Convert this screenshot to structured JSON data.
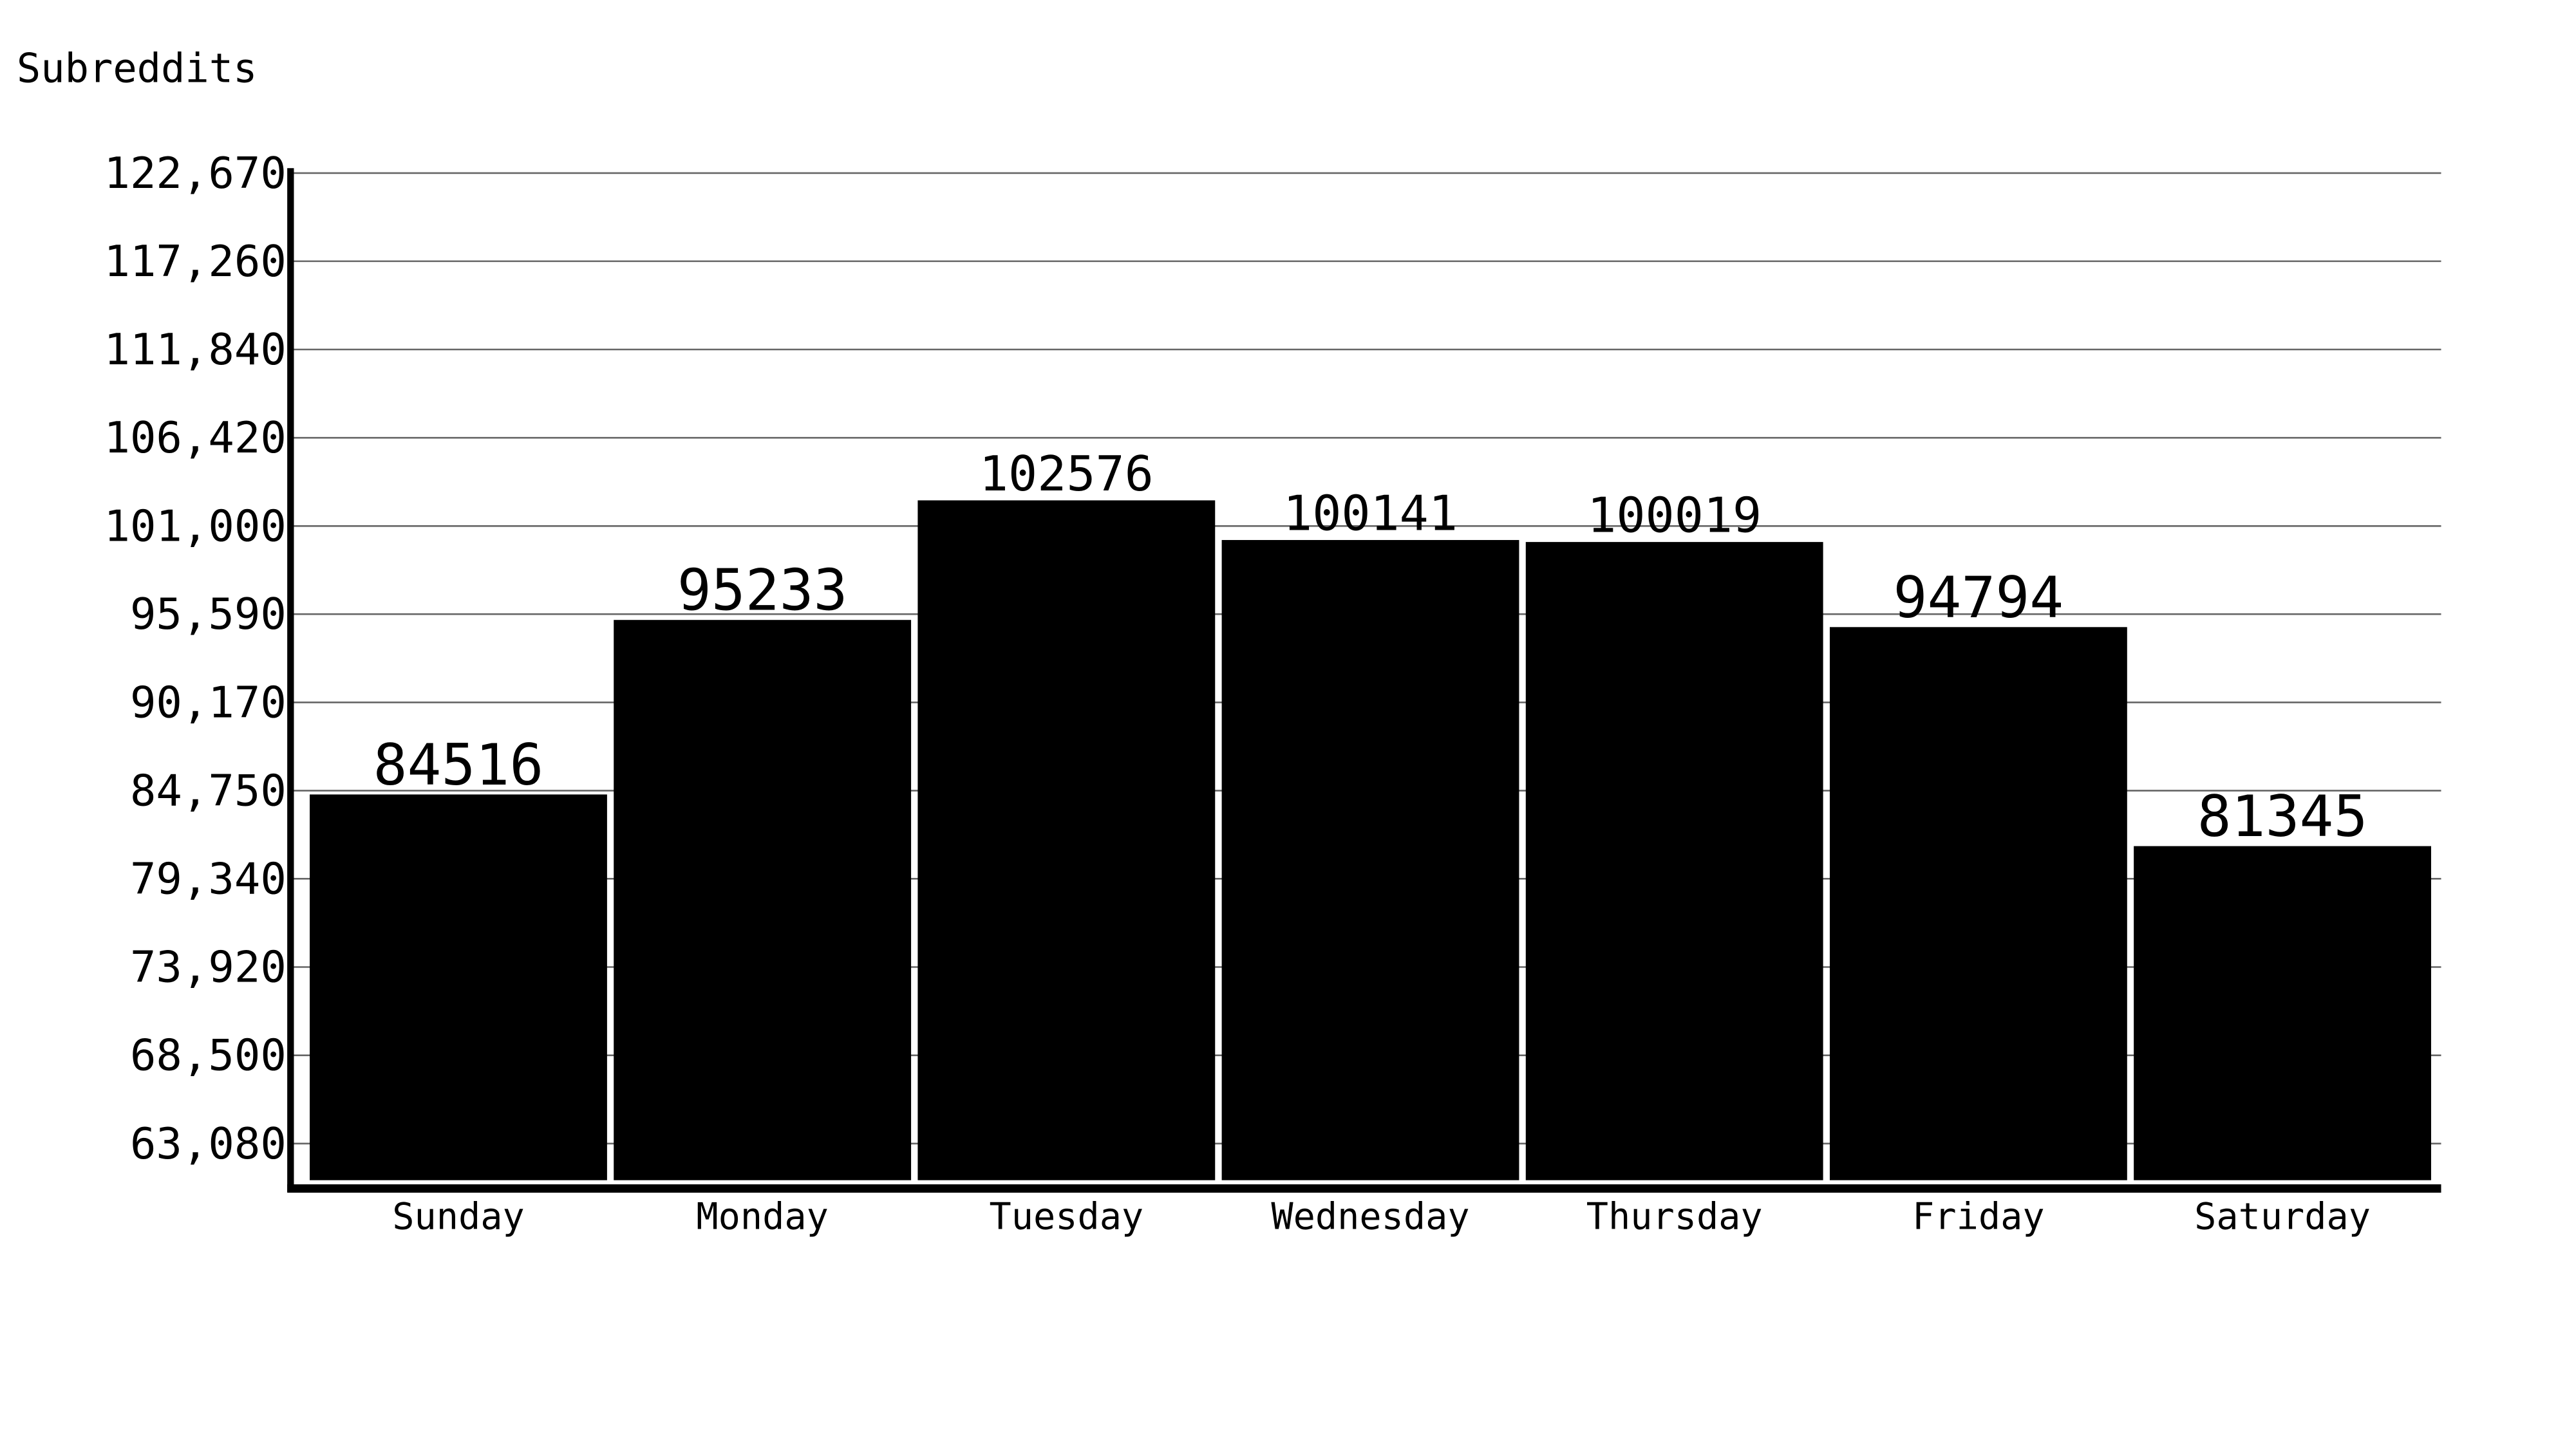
{
  "chart_data": {
    "type": "bar",
    "ylabel": "Subreddits",
    "xlabel": "",
    "categories": [
      "Sunday",
      "Monday",
      "Tuesday",
      "Wednesday",
      "Thursday",
      "Friday",
      "Saturday"
    ],
    "values": [
      84516,
      95233,
      102576,
      100141,
      100019,
      94794,
      81345
    ],
    "data_labels": [
      "84516",
      "95233",
      "102576",
      "100141",
      "100019",
      "94794",
      "81345"
    ],
    "y_ticks": [
      63080,
      68500,
      73920,
      79340,
      84750,
      90170,
      95590,
      101000,
      106420,
      111840,
      117260,
      122670
    ],
    "y_tick_labels": [
      "63,080",
      "68,500",
      "73,920",
      "79,340",
      "84,750",
      "90,170",
      "95,590",
      "101,000",
      "106,420",
      "111,840",
      "117,260",
      "122,670"
    ],
    "ylim": [
      60913,
      122670
    ],
    "grid": true,
    "legend": "none",
    "bar_color": "#000000"
  }
}
